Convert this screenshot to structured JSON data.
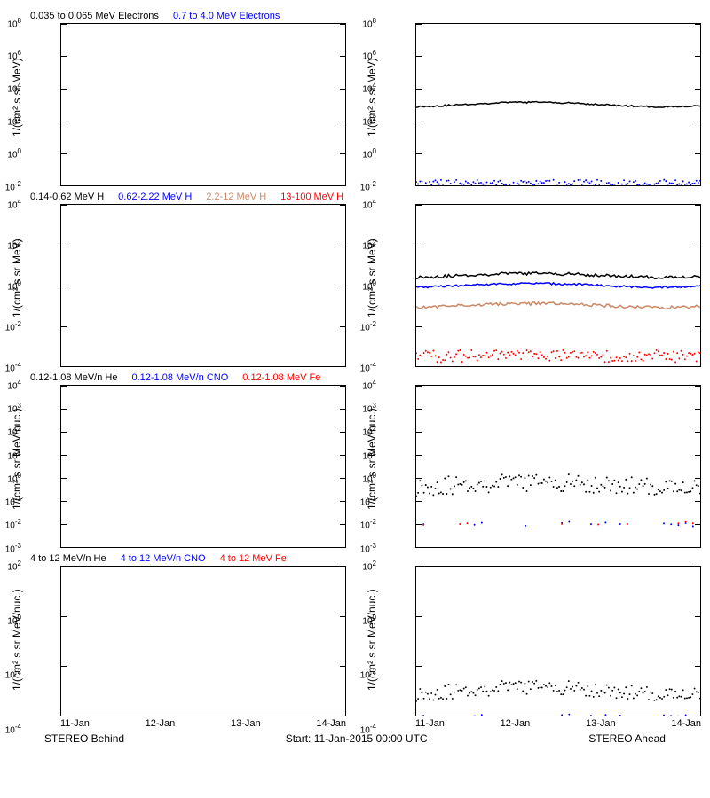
{
  "global": {
    "x_dates": [
      "11-Jan",
      "12-Jan",
      "13-Jan",
      "14-Jan"
    ],
    "footer_left": "STEREO Behind",
    "footer_center": "Start: 11-Jan-2015 00:00 UTC",
    "footer_right": "STEREO Ahead",
    "bg": "#ffffff",
    "axis_color": "#000000"
  },
  "rows": [
    {
      "ylabel": "1/(cm² s sr MeV)",
      "ylim_exp": [
        -2,
        8
      ],
      "ytick_exps": [
        -2,
        0,
        2,
        4,
        6,
        8
      ],
      "legend": [
        {
          "text": "0.035 to 0.065 MeV Electrons",
          "color": "#000000"
        },
        {
          "text": "0.7 to 4.0 MeV Electrons",
          "color": "#0000ff"
        }
      ],
      "left_series": [],
      "right_series": [
        {
          "color": "#000000",
          "type": "line",
          "level_exp": 3.0,
          "jitter": 0.05,
          "trend": 0.15
        },
        {
          "color": "#0000ff",
          "type": "scatter",
          "level_exp": -1.9,
          "jitter": 0.25,
          "trend": 0
        }
      ]
    },
    {
      "ylabel": "1/(cm² s sr MeV)",
      "ylim_exp": [
        -4,
        4
      ],
      "ytick_exps": [
        -4,
        -2,
        0,
        2,
        4
      ],
      "legend": [
        {
          "text": "0.14-0.62 MeV H",
          "color": "#000000"
        },
        {
          "text": "0.62-2.22 MeV H",
          "color": "#0000ff"
        },
        {
          "text": "2.2-12 MeV H",
          "color": "#cc8866"
        },
        {
          "text": "13-100 MeV H",
          "color": "#ff0000"
        }
      ],
      "left_series": [],
      "right_series": [
        {
          "color": "#000000",
          "type": "line",
          "level_exp": 0.5,
          "jitter": 0.08,
          "trend": 0.1
        },
        {
          "color": "#0000ff",
          "type": "line",
          "level_exp": 0.0,
          "jitter": 0.05,
          "trend": 0.1
        },
        {
          "color": "#cc8866",
          "type": "line",
          "level_exp": -1.0,
          "jitter": 0.08,
          "trend": 0.1
        },
        {
          "color": "#ff0000",
          "type": "scatter",
          "level_exp": -3.5,
          "jitter": 0.3,
          "trend": 0
        }
      ]
    },
    {
      "ylabel": "1/(cm² s sr MeV/nuc.)",
      "ylim_exp": [
        -3,
        4
      ],
      "ytick_exps": [
        -3,
        -2,
        -1,
        0,
        1,
        2,
        3,
        4
      ],
      "legend": [
        {
          "text": "0.12-1.08 MeV/n He",
          "color": "#000000"
        },
        {
          "text": "0.12-1.08 MeV/n CNO",
          "color": "#0000ff"
        },
        {
          "text": "0.12-1.08 MeV Fe",
          "color": "#ff0000"
        }
      ],
      "left_series": [],
      "right_series": [
        {
          "color": "#000000",
          "type": "scatter",
          "level_exp": -0.3,
          "jitter": 0.4,
          "trend": 0.1
        },
        {
          "color": "#0000ff",
          "type": "sparse",
          "level_exp": -2.0,
          "jitter": 0.1,
          "trend": 0
        },
        {
          "color": "#ff0000",
          "type": "sparse",
          "level_exp": -2.0,
          "jitter": 0.1,
          "trend": 0
        }
      ]
    },
    {
      "ylabel": "1/(cm² s sr MeV/nuc.)",
      "ylim_exp": [
        -4,
        2
      ],
      "ytick_exps": [
        -4,
        -2,
        0,
        2
      ],
      "legend": [
        {
          "text": "4 to 12 MeV/n He",
          "color": "#000000"
        },
        {
          "text": "4 to 12 MeV/n CNO",
          "color": "#0000ff"
        },
        {
          "text": "4 to 12 MeV Fe",
          "color": "#ff0000"
        }
      ],
      "left_series": [],
      "right_series": [
        {
          "color": "#000000",
          "type": "scatter",
          "level_exp": -3.0,
          "jitter": 0.3,
          "trend": 0.15
        },
        {
          "color": "#0000ff",
          "type": "sparse",
          "level_exp": -4.0,
          "jitter": 0.05,
          "trend": 0
        }
      ]
    }
  ]
}
